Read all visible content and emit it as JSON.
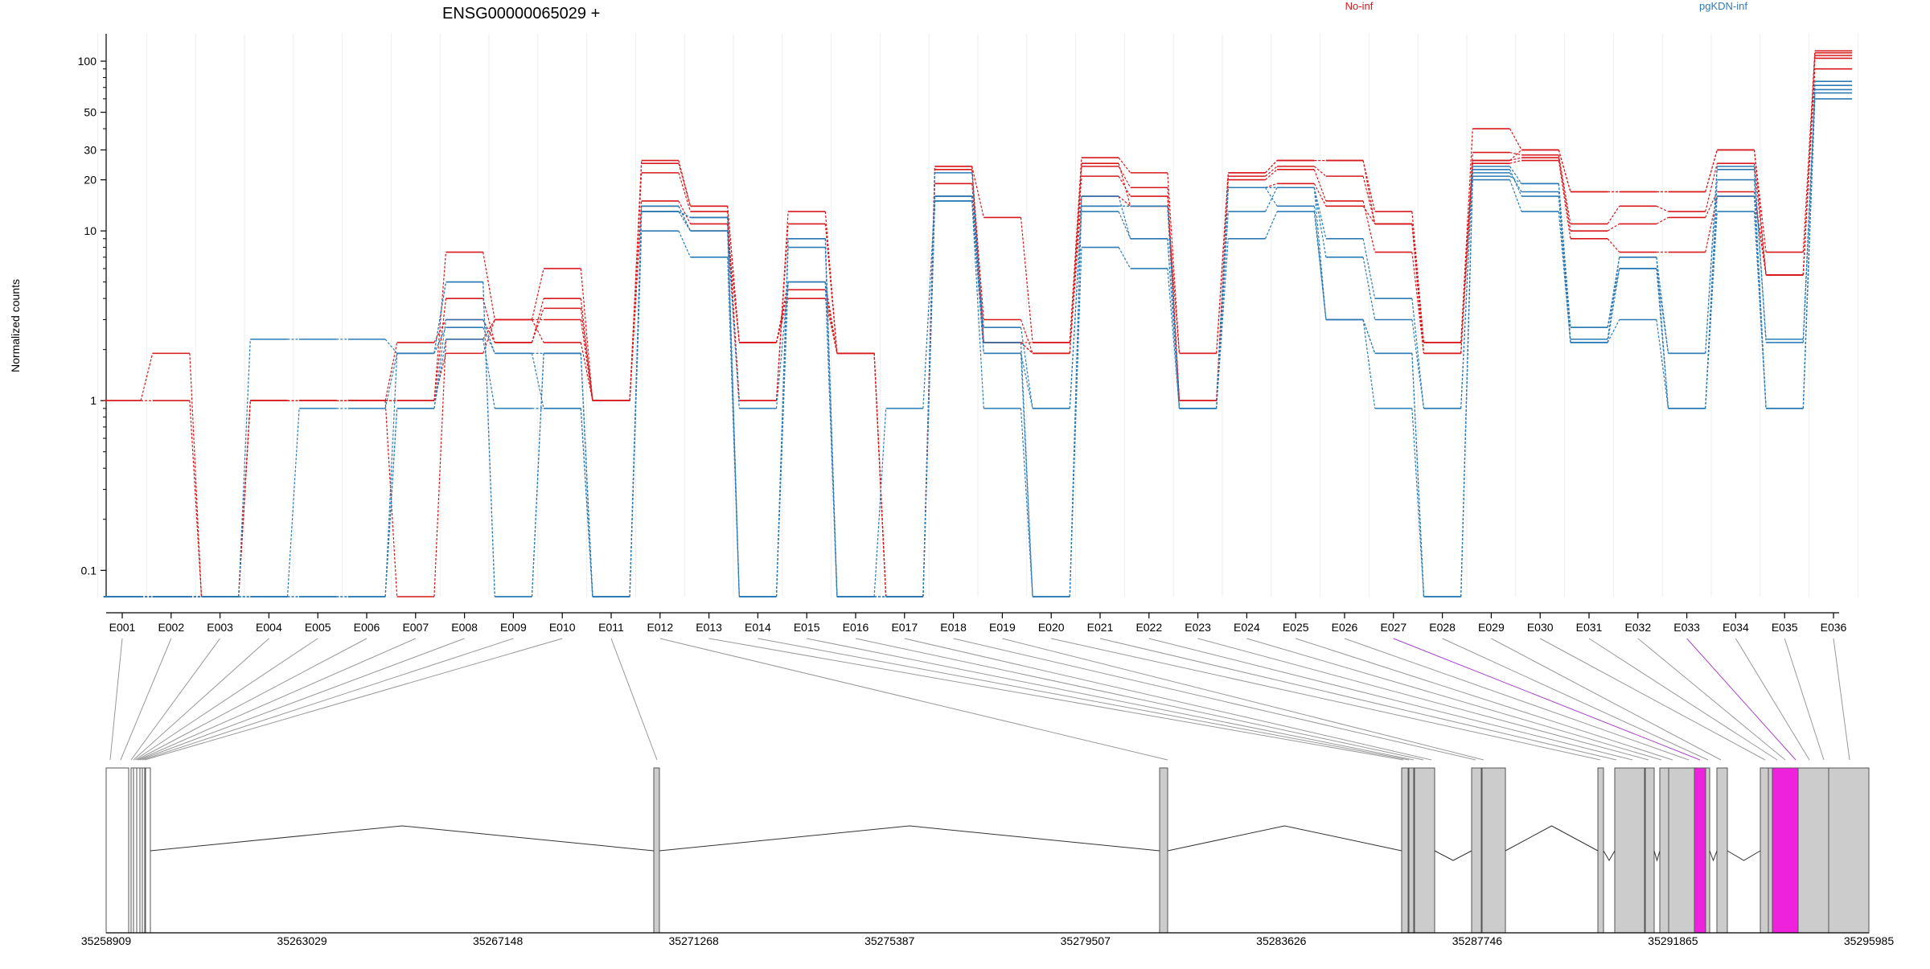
{
  "chart_data": {
    "type": "line",
    "title": "ENSG00000065029 +",
    "ylabel": "Normalized counts",
    "yscale": "log",
    "ylim": [
      0.07,
      145
    ],
    "yticks": [
      0.1,
      1,
      10,
      20,
      30,
      50,
      100
    ],
    "legend": [
      {
        "name": "No-inf",
        "color": "#d7191c"
      },
      {
        "name": "pgKDN-inf",
        "color": "#2c7bb6"
      }
    ],
    "categories": [
      "E001",
      "E002",
      "E003",
      "E004",
      "E005",
      "E006",
      "E007",
      "E008",
      "E009",
      "E010",
      "E011",
      "E012",
      "E013",
      "E014",
      "E015",
      "E016",
      "E017",
      "E018",
      "E019",
      "E020",
      "E021",
      "E022",
      "E023",
      "E024",
      "E025",
      "E026",
      "E027",
      "E028",
      "E029",
      "E030",
      "E031",
      "E032",
      "E033",
      "E034",
      "E035",
      "E036"
    ],
    "series": [
      {
        "group": "No-inf",
        "values": [
          1,
          1.9,
          0.07,
          1,
          1,
          1,
          0.07,
          2.3,
          3,
          3,
          1,
          25,
          14,
          2.2,
          4.5,
          1.9,
          0.07,
          24,
          12,
          2.2,
          27,
          22,
          1.9,
          22,
          26,
          26,
          13,
          2.2,
          40,
          30,
          17,
          17,
          17,
          30,
          7.5,
          115
        ]
      },
      {
        "group": "No-inf",
        "values": [
          1,
          1,
          0.07,
          1,
          1,
          1,
          1,
          1.9,
          3,
          2.2,
          1,
          22,
          13,
          1,
          13,
          1.9,
          0.07,
          23,
          3,
          1.9,
          24,
          18,
          1,
          21,
          24,
          21,
          11,
          1.9,
          29,
          28,
          11,
          14,
          13,
          25,
          5.5,
          108
        ]
      },
      {
        "group": "No-inf",
        "values": [
          0.07,
          0.07,
          0.07,
          1,
          1,
          1,
          2.2,
          3,
          2.2,
          3.5,
          1,
          15,
          11,
          1,
          11,
          1.9,
          0.07,
          19,
          2.2,
          1.9,
          21,
          16,
          1,
          20,
          23,
          15,
          7.5,
          1.9,
          26,
          27,
          10,
          11,
          12,
          17,
          5.5,
          104
        ]
      },
      {
        "group": "No-inf",
        "values": [
          0.07,
          0.07,
          0.07,
          1,
          1,
          1,
          1,
          7.5,
          3,
          6,
          1,
          14,
          10,
          2.2,
          5,
          1.9,
          0.07,
          16,
          2.2,
          1.9,
          16,
          14,
          1,
          18,
          19,
          14,
          11,
          1.9,
          25,
          26,
          9,
          7.5,
          7.5,
          16,
          5.5,
          90
        ]
      },
      {
        "group": "No-inf",
        "values": [
          0.07,
          0.07,
          0.07,
          1,
          1,
          1,
          1,
          4,
          2.2,
          4,
          1,
          26,
          14,
          2.2,
          4,
          1.9,
          0.07,
          24,
          2.2,
          2.2,
          25,
          14,
          1.9,
          22,
          26,
          26,
          11,
          2.2,
          26,
          30,
          17,
          17,
          17,
          30,
          5.5,
          112
        ]
      },
      {
        "group": "pgKDN-inf",
        "values": [
          0.07,
          0.07,
          0.07,
          2.3,
          2.3,
          2.3,
          1.9,
          5,
          0.07,
          1.9,
          0.07,
          13,
          12,
          0.07,
          9,
          0.07,
          0.07,
          16,
          2.7,
          0.9,
          14,
          14,
          0.9,
          18,
          18,
          9,
          4,
          0.9,
          24,
          19,
          2.3,
          7,
          1.9,
          24,
          2.3,
          72
        ]
      },
      {
        "group": "pgKDN-inf",
        "values": [
          0.07,
          0.07,
          0.07,
          0.07,
          0.9,
          0.9,
          1.9,
          5,
          0.07,
          1.9,
          0.07,
          13,
          10,
          0.07,
          8,
          0.07,
          0.9,
          16,
          1.9,
          0.9,
          13,
          9,
          0.9,
          18,
          18,
          7,
          3,
          0.9,
          23,
          16,
          2.2,
          6,
          1.9,
          23,
          2.2,
          65
        ]
      },
      {
        "group": "pgKDN-inf",
        "values": [
          0.07,
          0.07,
          0.07,
          0.07,
          0.07,
          0.07,
          0.9,
          3,
          1.9,
          0.9,
          0.07,
          14,
          10,
          0.9,
          5,
          0.07,
          0.07,
          15,
          0.9,
          0.07,
          14,
          14,
          0.9,
          13,
          18,
          3,
          1.9,
          0.07,
          22,
          17,
          2.7,
          6,
          0.9,
          16,
          0.9,
          68
        ]
      },
      {
        "group": "pgKDN-inf",
        "values": [
          0.07,
          0.07,
          0.07,
          0.07,
          0.07,
          0.07,
          0.9,
          2.3,
          0.9,
          0.9,
          0.07,
          10,
          7,
          0.07,
          5,
          0.07,
          0.07,
          15,
          1.9,
          0.07,
          8,
          6,
          0.9,
          9,
          13,
          3,
          0.9,
          0.07,
          20,
          13,
          2.2,
          3,
          0.9,
          13,
          0.9,
          60
        ]
      },
      {
        "group": "pgKDN-inf",
        "values": [
          0.07,
          0.07,
          0.07,
          0.07,
          0.07,
          0.07,
          1.9,
          2.7,
          1.9,
          1.9,
          0.07,
          13,
          12,
          0.07,
          9,
          0.07,
          0.07,
          22,
          2.2,
          0.07,
          16,
          9,
          0.9,
          18,
          14,
          3,
          1.9,
          0.07,
          21,
          19,
          2.7,
          7,
          0.9,
          20,
          0.9,
          76
        ]
      }
    ],
    "genome_axis": {
      "ticks": [
        "35258909",
        "35263029",
        "35267148",
        "35271268",
        "35275387",
        "35279507",
        "35283626",
        "35287746",
        "35291865",
        "35295985"
      ]
    }
  }
}
